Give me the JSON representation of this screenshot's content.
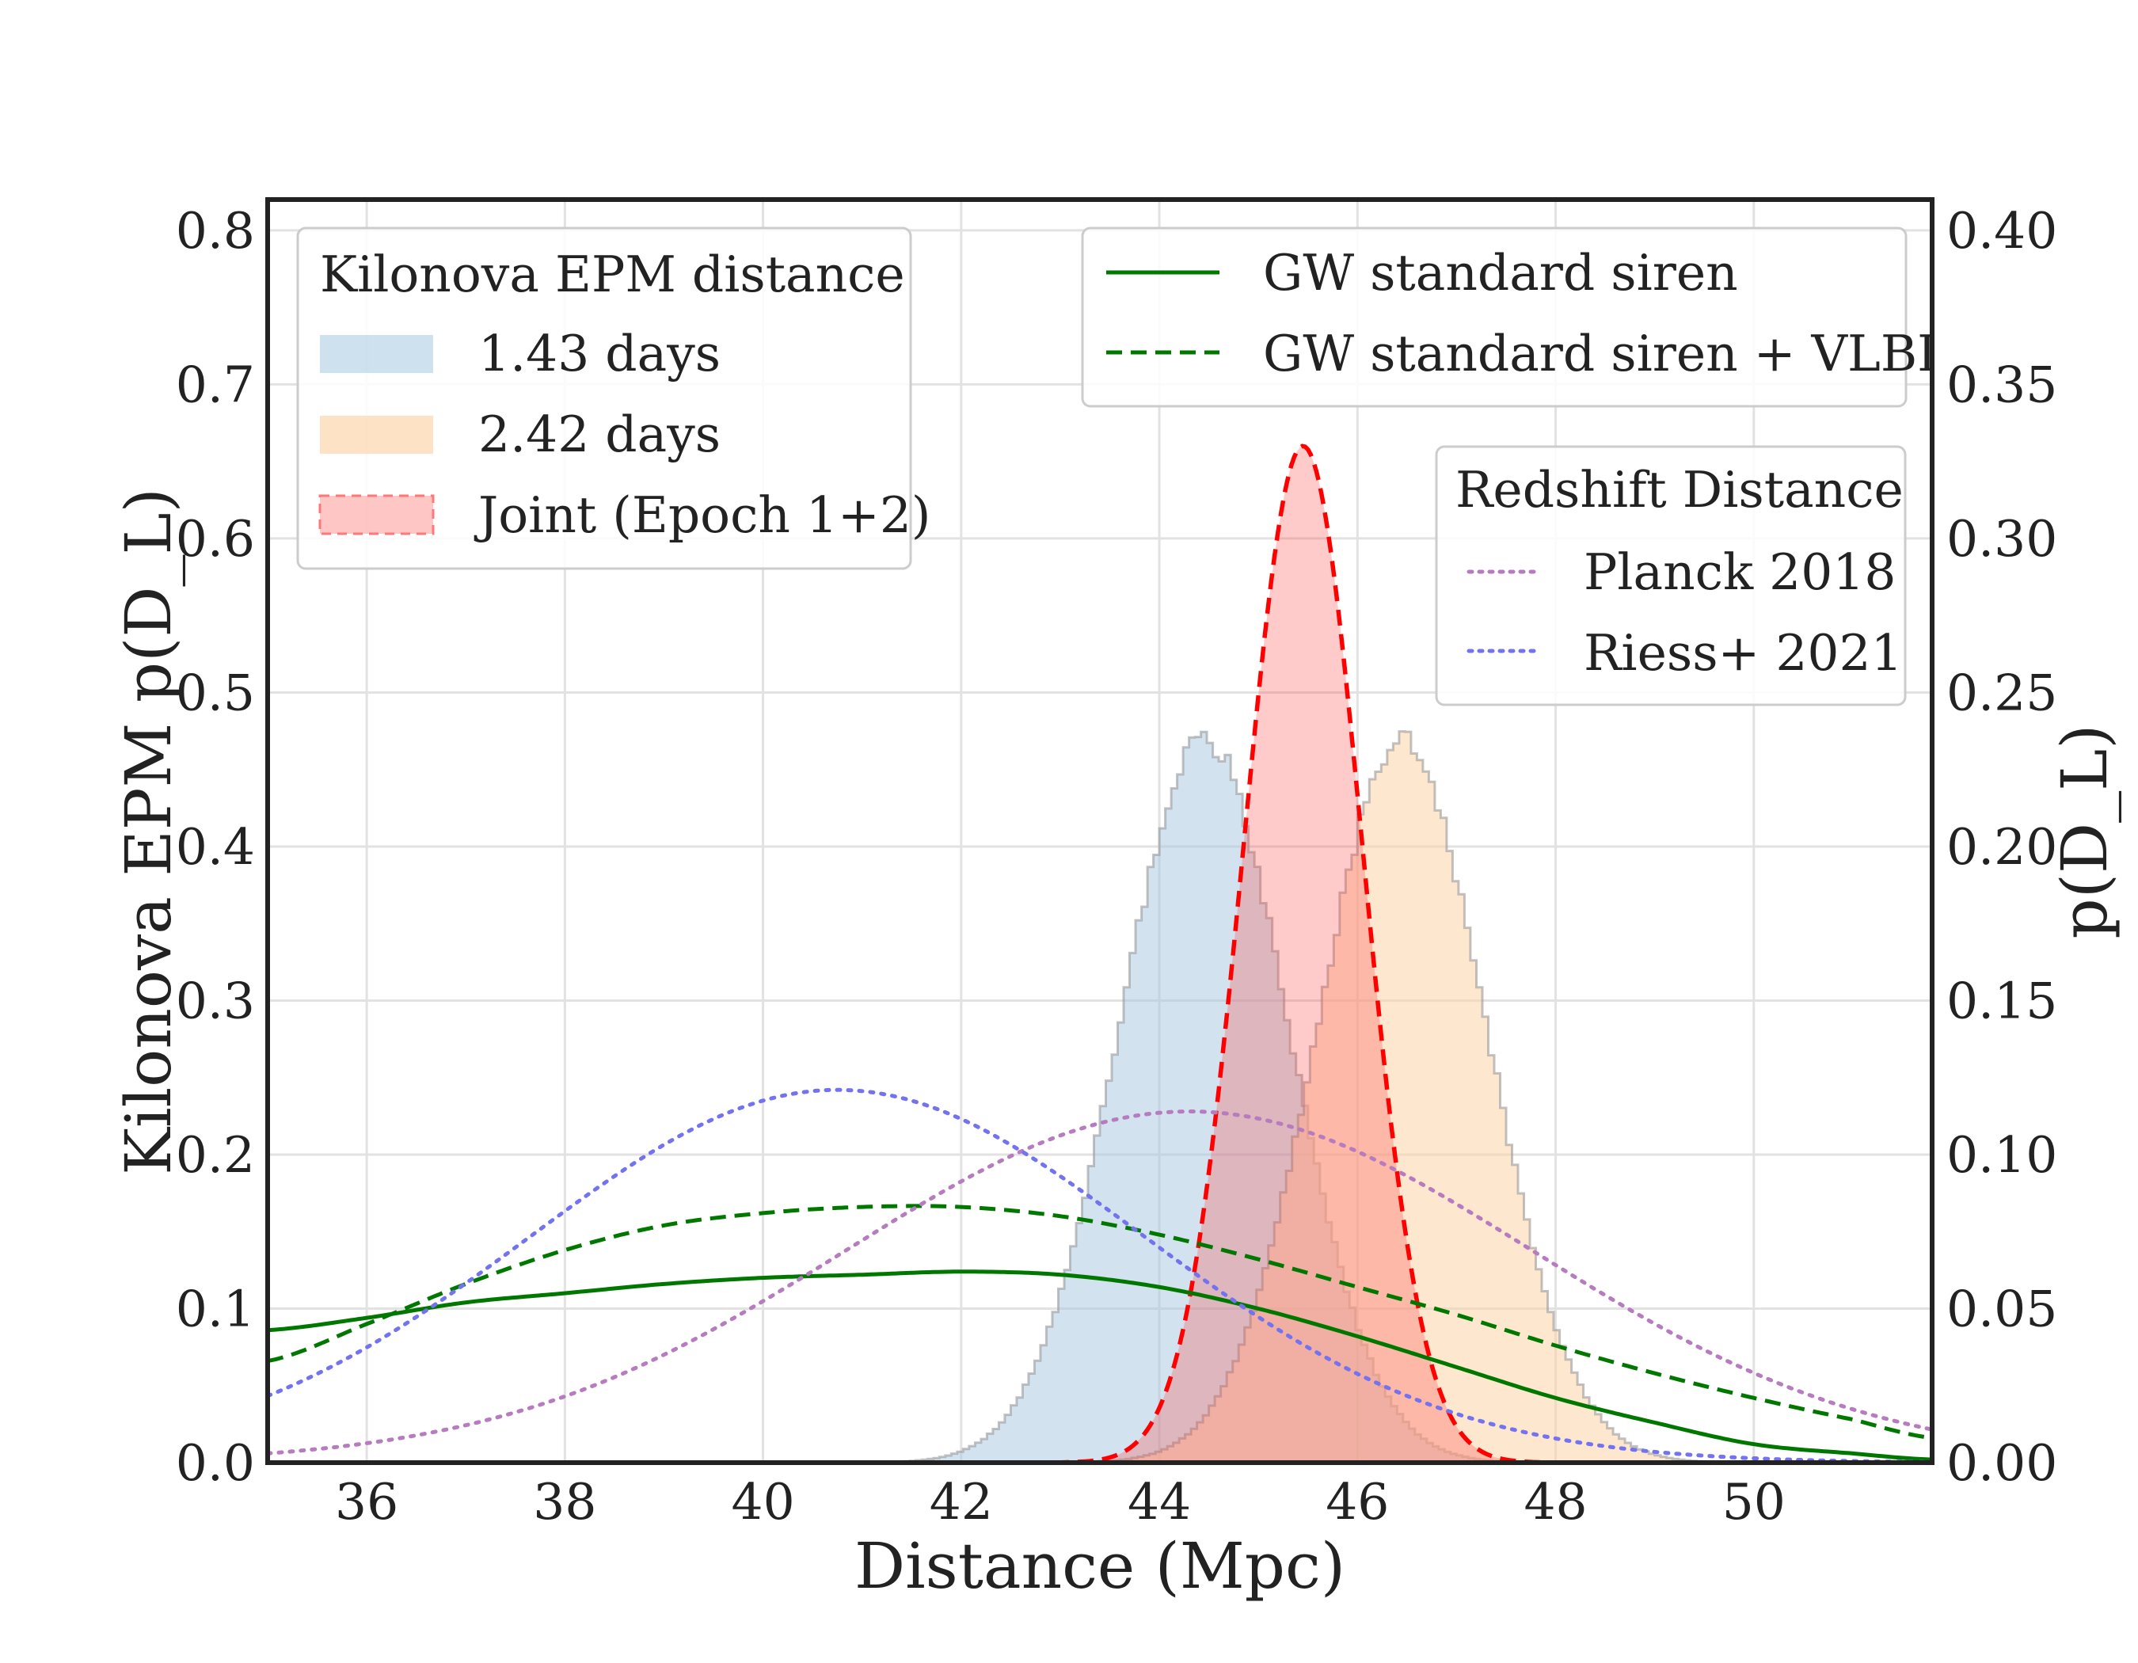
{
  "chart_data": {
    "type": "area",
    "xlabel": "Distance (Mpc)",
    "ylabel_left": "Kilonova EPM p(D_L)",
    "ylabel_right": "p(D_L)",
    "xlim": [
      35,
      51.8
    ],
    "ylim_left": [
      0,
      0.82
    ],
    "ylim_right": [
      0,
      0.41
    ],
    "x_ticks": [
      36,
      38,
      40,
      42,
      44,
      46,
      48,
      50
    ],
    "x_tick_labels": [
      "36",
      "38",
      "40",
      "42",
      "44",
      "46",
      "48",
      "50"
    ],
    "y_ticks_left": [
      0,
      0.1,
      0.2,
      0.3,
      0.4,
      0.5,
      0.6,
      0.7,
      0.8
    ],
    "y_tick_labels_left": [
      "0.0",
      "0.1",
      "0.2",
      "0.3",
      "0.4",
      "0.5",
      "0.6",
      "0.7",
      "0.8"
    ],
    "y_ticks_right": [
      0,
      0.05,
      0.1,
      0.15,
      0.2,
      0.25,
      0.3,
      0.35,
      0.4
    ],
    "y_tick_labels_right": [
      "0.00",
      "0.05",
      "0.10",
      "0.15",
      "0.20",
      "0.25",
      "0.30",
      "0.35",
      "0.40"
    ],
    "grid": true,
    "legend_epm": {
      "title": "Kilonova EPM distance",
      "placement": "top-left",
      "entries": [
        "1.43 days",
        "2.42 days",
        "Joint (Epoch 1+2)"
      ]
    },
    "legend_gw": {
      "placement": "top-right",
      "entries": [
        "GW standard siren",
        "GW standard siren + VLBI"
      ]
    },
    "legend_redshift": {
      "title": "Redshift Distance",
      "placement": "upper-right",
      "entries": [
        "Planck 2018",
        "Riess+ 2021"
      ]
    },
    "series": [
      {
        "name": "1.43 days",
        "kind": "histogram",
        "axis": "left",
        "model": "gaussian",
        "mean": 44.45,
        "sigma": 0.85,
        "peak": 0.47,
        "color": "#a6c8e0"
      },
      {
        "name": "2.42 days",
        "kind": "histogram",
        "axis": "left",
        "model": "gaussian",
        "mean": 46.45,
        "sigma": 0.85,
        "peak": 0.47,
        "color": "#fdd3a8"
      },
      {
        "name": "Joint (Epoch 1+2)",
        "kind": "filled-dashed",
        "axis": "left",
        "model": "gaussian",
        "mean": 45.45,
        "sigma": 0.6,
        "peak": 0.66,
        "color": "#ff0000"
      },
      {
        "name": "GW standard siren",
        "kind": "line-solid",
        "axis": "right",
        "x": [
          35,
          36,
          37,
          38,
          39,
          40,
          41,
          42,
          43,
          44,
          45,
          46,
          47,
          48,
          49,
          50,
          51,
          51.8
        ],
        "y": [
          0.043,
          0.047,
          0.052,
          0.055,
          0.058,
          0.06,
          0.061,
          0.062,
          0.061,
          0.057,
          0.05,
          0.041,
          0.031,
          0.021,
          0.013,
          0.006,
          0.003,
          0.001
        ],
        "color": "#007800"
      },
      {
        "name": "GW standard siren + VLBI",
        "kind": "line-dashed",
        "axis": "right",
        "x": [
          35,
          36,
          37,
          38,
          39,
          40,
          41,
          42,
          43,
          44,
          45,
          46,
          47,
          48,
          49,
          50,
          51,
          51.8
        ],
        "y": [
          0.033,
          0.045,
          0.058,
          0.069,
          0.077,
          0.081,
          0.083,
          0.083,
          0.08,
          0.074,
          0.066,
          0.057,
          0.048,
          0.038,
          0.029,
          0.021,
          0.014,
          0.008
        ],
        "color": "#007800"
      },
      {
        "name": "Planck 2018",
        "kind": "line-dotted",
        "axis": "right",
        "model": "gaussian",
        "mean": 44.3,
        "sigma": 3.45,
        "peak": 0.114,
        "color": "#b77cc0"
      },
      {
        "name": "Riess+ 2021",
        "kind": "line-dotted",
        "axis": "right",
        "model": "gaussian",
        "mean": 40.75,
        "sigma": 3.1,
        "peak": 0.121,
        "color": "#7373f0"
      }
    ]
  }
}
